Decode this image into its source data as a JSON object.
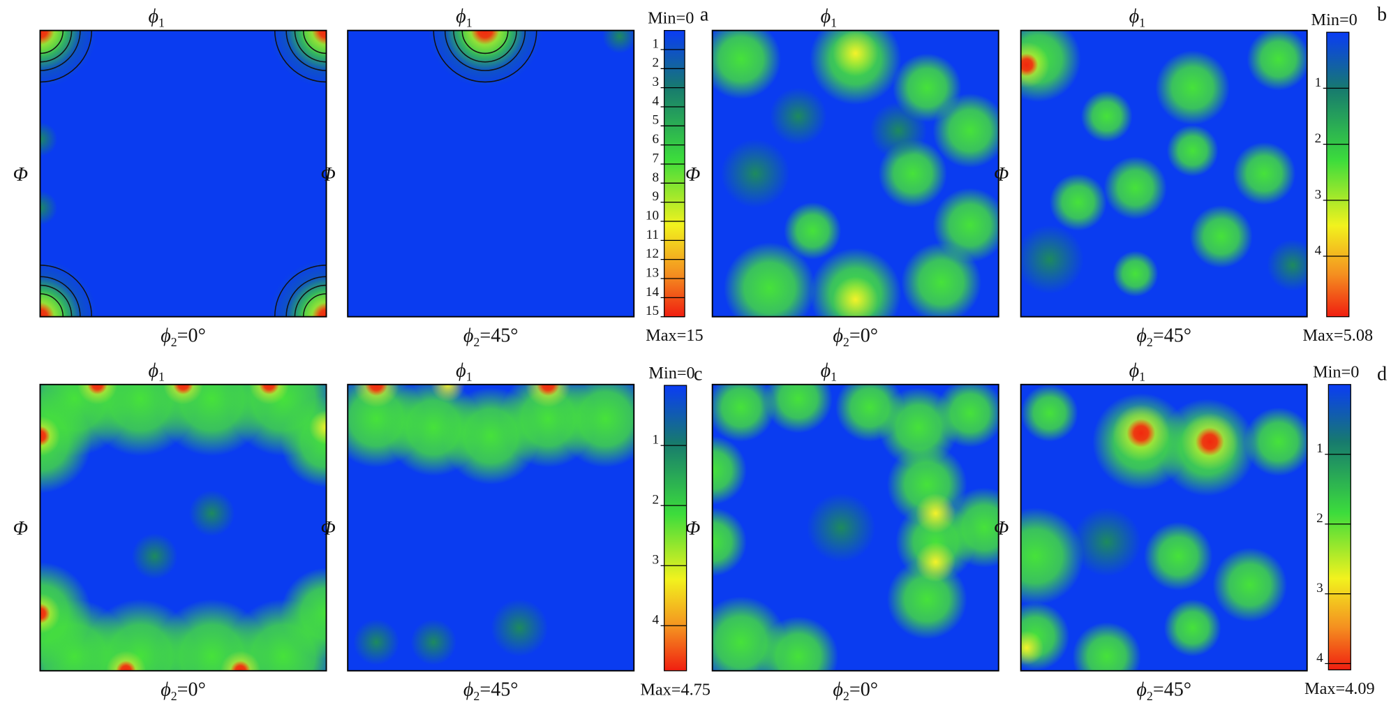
{
  "panels": [
    {
      "label": "a",
      "sections": [
        {
          "top": [
            "ϕ",
            "1"
          ],
          "side": "Φ",
          "bottom": [
            "ϕ",
            "2",
            "=0°"
          ]
        },
        {
          "top": [
            "ϕ",
            "1"
          ],
          "side": "Φ",
          "bottom": [
            "ϕ",
            "2",
            "=45°"
          ]
        }
      ],
      "colorbar": {
        "min_label": "Min=0",
        "max_label": "Max=15",
        "lim": [
          0,
          15
        ],
        "ticks": [
          1,
          2,
          3,
          4,
          5,
          6,
          7,
          8,
          9,
          10,
          11,
          12,
          13,
          14,
          15
        ]
      }
    },
    {
      "label": "b",
      "sections": [
        {
          "top": [
            "ϕ",
            "1"
          ],
          "side": "Φ",
          "bottom": [
            "ϕ",
            "2",
            "=0°"
          ]
        },
        {
          "top": [
            "ϕ",
            "1"
          ],
          "side": "Φ",
          "bottom": [
            "ϕ",
            "2",
            "=45°"
          ]
        }
      ],
      "colorbar": {
        "min_label": "Min=0",
        "max_label": "Max=5.08",
        "lim": [
          0,
          5.08
        ],
        "ticks": [
          1,
          2,
          3,
          4
        ]
      }
    },
    {
      "label": "c",
      "sections": [
        {
          "top": [
            "ϕ",
            "1"
          ],
          "side": "Φ",
          "bottom": [
            "ϕ",
            "2",
            "=0°"
          ]
        },
        {
          "top": [
            "ϕ",
            "1"
          ],
          "side": "Φ",
          "bottom": [
            "ϕ",
            "2",
            "=45°"
          ]
        }
      ],
      "colorbar": {
        "min_label": "Min=0",
        "max_label": "Max=4.75",
        "lim": [
          0,
          4.75
        ],
        "ticks": [
          1,
          2,
          3,
          4
        ]
      }
    },
    {
      "label": "d",
      "sections": [
        {
          "top": [
            "ϕ",
            "1"
          ],
          "side": "Φ",
          "bottom": [
            "ϕ",
            "2",
            "=0°"
          ]
        },
        {
          "top": [
            "ϕ",
            "1"
          ],
          "side": "Φ",
          "bottom": [
            "ϕ",
            "2",
            "=45°"
          ]
        }
      ],
      "colorbar": {
        "min_label": "Min=0",
        "max_label": "Max=4.09",
        "lim": [
          0,
          4.09
        ],
        "ticks": [
          1,
          2,
          3,
          4
        ]
      }
    }
  ]
}
